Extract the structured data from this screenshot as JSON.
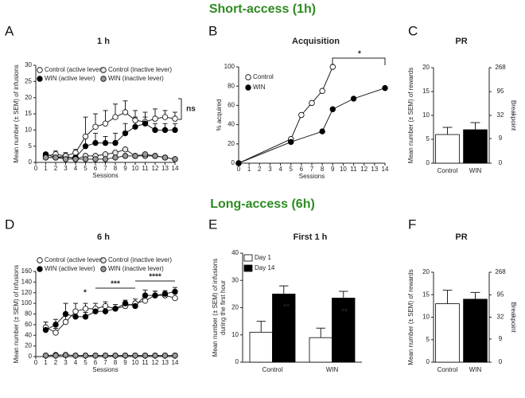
{
  "sections": [
    "Short-access (1h)",
    "Long-access (6h)"
  ],
  "chart_data": [
    {
      "panel": "A",
      "type": "line",
      "title": "1 h",
      "ylabel": [
        "Mean number (± SEM) of infusions"
      ],
      "xlabel": "Sessions",
      "x": [
        1,
        2,
        3,
        4,
        5,
        6,
        7,
        8,
        9,
        10,
        11,
        12,
        13,
        14
      ],
      "xlim": [
        0,
        14
      ],
      "xticks": [
        0,
        1,
        2,
        3,
        4,
        5,
        6,
        7,
        8,
        9,
        10,
        11,
        12,
        13,
        14
      ],
      "ylim": [
        0,
        30
      ],
      "yticks": [
        0,
        5,
        10,
        15,
        20,
        25,
        30
      ],
      "series": [
        {
          "name": "Control (active lever)",
          "color": "#ffffff",
          "values": [
            2,
            2.5,
            2,
            3,
            8,
            11,
            12,
            14,
            15.5,
            13,
            12.5,
            13.5,
            14,
            13.5
          ],
          "errors": [
            1,
            1,
            1,
            1,
            6,
            4,
            4,
            4,
            3.5,
            3,
            3,
            3,
            2,
            2
          ]
        },
        {
          "name": "WIN (active  lever)",
          "color": "#000000",
          "values": [
            2.5,
            1.5,
            1.5,
            1.5,
            5,
            6,
            6,
            6,
            9,
            11,
            12,
            10,
            10,
            10
          ],
          "errors": [
            0.5,
            0.5,
            0.5,
            0.5,
            3,
            3,
            2,
            3,
            3,
            3,
            2,
            2,
            2,
            2
          ]
        },
        {
          "name": "Control (inactive lever)",
          "color": "#e6e6e6",
          "values": [
            1.5,
            1.5,
            2,
            1,
            2,
            2,
            2.5,
            3,
            4,
            2,
            2,
            2,
            1.5,
            1
          ]
        },
        {
          "name": "WIN (inactive lever)",
          "color": "#999999",
          "values": [
            1.5,
            1.5,
            1,
            1,
            1,
            1,
            1,
            1.5,
            2,
            2,
            2.5,
            2,
            1.5,
            1
          ]
        }
      ],
      "annotations": [
        "ns"
      ]
    },
    {
      "panel": "B",
      "type": "line",
      "title": "Acquisition",
      "ylabel": [
        "% acquired"
      ],
      "xlabel": "Sessions",
      "xlim": [
        0,
        14
      ],
      "xticks": [
        0,
        1,
        2,
        3,
        4,
        5,
        6,
        7,
        8,
        9,
        10,
        11,
        12,
        13,
        14
      ],
      "ylim": [
        0,
        100
      ],
      "yticks": [
        0,
        20,
        40,
        60,
        80,
        100
      ],
      "series": [
        {
          "name": "Control",
          "color": "#ffffff",
          "x": [
            0,
            5,
            6,
            7,
            8,
            9
          ],
          "values": [
            0,
            25,
            50,
            62.5,
            75,
            100
          ]
        },
        {
          "name": "WIN",
          "color": "#000000",
          "x": [
            0,
            5,
            8,
            9,
            11,
            14
          ],
          "values": [
            0,
            22,
            33,
            56,
            67,
            78
          ]
        }
      ],
      "annotations": [
        "*"
      ]
    },
    {
      "panel": "C",
      "type": "bar",
      "title": "PR",
      "ylabel": [
        "Mean number (± SEM) of rewards"
      ],
      "y2label": "Breakpoint",
      "categories": [
        "Control",
        "WIN"
      ],
      "values": [
        6,
        7
      ],
      "errors": [
        1.5,
        1.5
      ],
      "colors": [
        "#ffffff",
        "#000000"
      ],
      "ylim": [
        0,
        20
      ],
      "yticks": [
        0,
        5,
        10,
        15,
        20
      ],
      "y2scale": "exponential",
      "y2ticks": [
        0,
        9,
        32,
        95,
        268
      ]
    },
    {
      "panel": "D",
      "type": "line",
      "title": "6 h",
      "ylabel": [
        "Mean number (± SEM) of infusions"
      ],
      "xlabel": "Sessions",
      "x": [
        1,
        2,
        3,
        4,
        5,
        6,
        7,
        8,
        9,
        10,
        11,
        12,
        13,
        14
      ],
      "xlim": [
        0,
        14
      ],
      "xticks": [
        0,
        1,
        2,
        3,
        4,
        5,
        6,
        7,
        8,
        9,
        10,
        11,
        12,
        13,
        14
      ],
      "ylim": [
        0,
        160
      ],
      "yticks": [
        0,
        20,
        40,
        60,
        80,
        100,
        120,
        140,
        160
      ],
      "series": [
        {
          "name": "Control (active lever)",
          "color": "#ffffff",
          "values": [
            55,
            45,
            65,
            85,
            90,
            90,
            95,
            90,
            95,
            100,
            105,
            115,
            115,
            110
          ],
          "errors": [
            10,
            8,
            12,
            15,
            10,
            10,
            8,
            8,
            8,
            8,
            10,
            8,
            6,
            8
          ]
        },
        {
          "name": "WIN (active lever)",
          "color": "#000000",
          "values": [
            50,
            60,
            80,
            75,
            75,
            85,
            85,
            90,
            100,
            95,
            115,
            115,
            118,
            122
          ],
          "errors": [
            8,
            10,
            20,
            10,
            8,
            8,
            8,
            8,
            6,
            8,
            10,
            8,
            6,
            8
          ]
        },
        {
          "name": "Control (inactive lever)",
          "color": "#e6e6e6",
          "values": [
            2,
            3,
            3,
            2,
            2,
            2,
            2,
            2,
            2,
            2,
            2,
            2,
            2,
            2
          ]
        },
        {
          "name": "WIN (inactive lever)",
          "color": "#999999",
          "values": [
            2,
            2,
            3,
            2,
            2,
            2,
            2,
            2,
            2,
            2,
            2,
            2,
            2,
            2
          ]
        }
      ],
      "annotations": [
        "*",
        "***",
        "****"
      ]
    },
    {
      "panel": "E",
      "type": "bar",
      "title": "First  1 h",
      "ylabel": [
        "Mean number (± SEM) of infusions",
        "during the first hour"
      ],
      "categories": [
        "Control",
        "WIN"
      ],
      "ylim": [
        0,
        40
      ],
      "yticks": [
        0,
        10,
        20,
        30,
        40
      ],
      "series": [
        {
          "name": "Day 1",
          "color": "#ffffff",
          "values": [
            11,
            9
          ],
          "errors": [
            4,
            3.5
          ]
        },
        {
          "name": "Day 14",
          "color": "#000000",
          "values": [
            25,
            23.5
          ],
          "errors": [
            3,
            2.5
          ]
        }
      ],
      "annotations": [
        "**",
        "**"
      ]
    },
    {
      "panel": "F",
      "type": "bar",
      "title": "PR",
      "ylabel": [
        "Mean number (± SEM) of rewards"
      ],
      "y2label": "Breakpoint",
      "categories": [
        "Control",
        "WIN"
      ],
      "values": [
        13,
        14
      ],
      "errors": [
        3,
        1.5
      ],
      "colors": [
        "#ffffff",
        "#000000"
      ],
      "ylim": [
        0,
        20
      ],
      "yticks": [
        0,
        5,
        10,
        15,
        20
      ],
      "y2scale": "exponential",
      "y2ticks": [
        0,
        9,
        32,
        95,
        268
      ]
    }
  ]
}
